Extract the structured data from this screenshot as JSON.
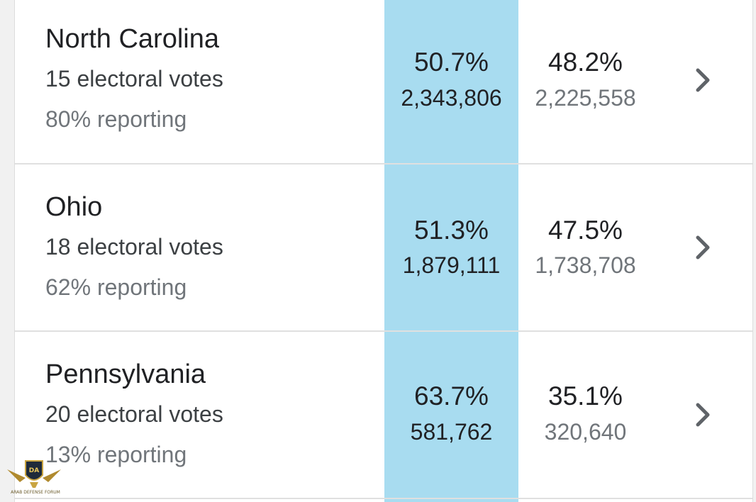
{
  "results": [
    {
      "state": "North Carolina",
      "electoral_votes": "15 electoral votes",
      "reporting": "80% reporting",
      "leader": {
        "pct": "50.7%",
        "votes": "2,343,806"
      },
      "trailer": {
        "pct": "48.2%",
        "votes": "2,225,558"
      },
      "action_icon": "chevron-right-icon"
    },
    {
      "state": "Ohio",
      "electoral_votes": "18 electoral votes",
      "reporting": "62% reporting",
      "leader": {
        "pct": "51.3%",
        "votes": "1,879,111"
      },
      "trailer": {
        "pct": "47.5%",
        "votes": "1,738,708"
      },
      "action_icon": "chevron-right-icon"
    },
    {
      "state": "Pennsylvania",
      "electoral_votes": "20 electoral votes",
      "reporting": "13% reporting",
      "leader": {
        "pct": "63.7%",
        "votes": "581,762"
      },
      "trailer": {
        "pct": "35.1%",
        "votes": "320,640"
      },
      "action_icon": "chevron-right-icon"
    }
  ],
  "colors": {
    "leader_highlight": "#a8dcf0",
    "primary_text": "#202124",
    "secondary_text": "#70757a",
    "divider": "#e0e0e0"
  },
  "watermark": {
    "title": "ARAB DEFENSE FORUM",
    "monogram": "DA"
  }
}
